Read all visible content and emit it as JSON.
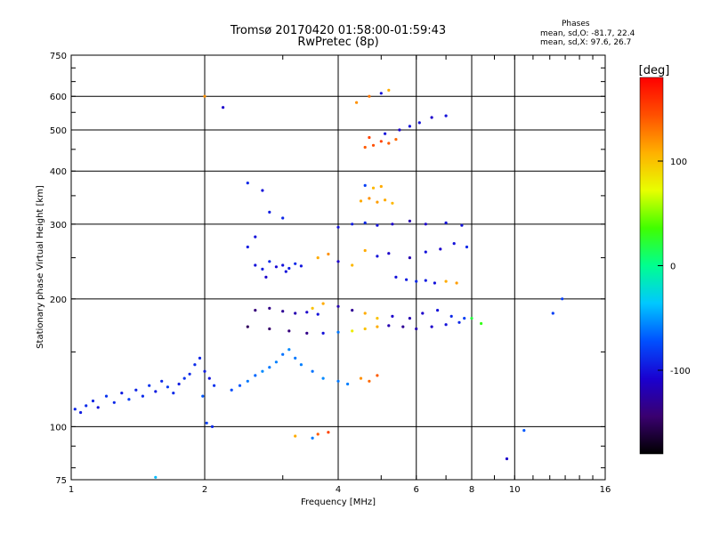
{
  "header": {
    "title_line1": "Tromsø 20170420 01:58:00-01:59:43",
    "title_line2": "RwPretec (8p)",
    "phases_heading": "Phases",
    "phases_o": "mean, sd,O: -81.7, 22.4",
    "phases_x": "mean, sd,X:  97.6, 26.7"
  },
  "colorbar": {
    "unit_label": "[deg]",
    "ticks": [
      {
        "value": 100,
        "label": "100"
      },
      {
        "value": 0,
        "label": "0"
      },
      {
        "value": -100,
        "label": "-100"
      }
    ],
    "range": [
      -180,
      180
    ],
    "stops": [
      "#000000",
      "#3a0070",
      "#1a00d0",
      "#0050ff",
      "#00c8ff",
      "#00ff90",
      "#40ff00",
      "#e8ff00",
      "#ffb000",
      "#ff5000",
      "#ff0000"
    ]
  },
  "chart_data": {
    "type": "scatter",
    "xlabel": "Frequency [MHz]",
    "ylabel": "Stationary phase Virtual Height [km]",
    "x_scale": "log",
    "y_scale": "log",
    "xlim": [
      1,
      16
    ],
    "ylim": [
      75,
      750
    ],
    "x_ticks": [
      1,
      2,
      4,
      6,
      8,
      10,
      16
    ],
    "y_ticks": [
      75,
      100,
      200,
      300,
      400,
      500,
      600,
      750
    ],
    "grid": true,
    "series": [
      {
        "label": "",
        "points": [
          [
            1.02,
            110,
            -90
          ],
          [
            1.05,
            108,
            -95
          ],
          [
            1.08,
            112,
            -88
          ],
          [
            1.12,
            115,
            -92
          ],
          [
            1.15,
            111,
            -100
          ],
          [
            1.2,
            118,
            -85
          ],
          [
            1.25,
            114,
            -90
          ],
          [
            1.3,
            120,
            -95
          ],
          [
            1.35,
            116,
            -80
          ],
          [
            1.4,
            122,
            -92
          ],
          [
            1.45,
            118,
            -88
          ],
          [
            1.5,
            125,
            -85
          ],
          [
            1.55,
            121,
            -95
          ],
          [
            1.6,
            128,
            -90
          ],
          [
            1.65,
            124,
            -82
          ],
          [
            1.7,
            120,
            -88
          ],
          [
            1.75,
            126,
            -95
          ],
          [
            1.8,
            130,
            -85
          ],
          [
            1.85,
            133,
            -90
          ],
          [
            1.9,
            140,
            -88
          ],
          [
            1.95,
            145,
            -92
          ],
          [
            2.0,
            135,
            -95
          ],
          [
            2.05,
            130,
            -100
          ],
          [
            2.1,
            125,
            -85
          ],
          [
            1.98,
            118,
            -70
          ],
          [
            2.02,
            102,
            -80
          ],
          [
            2.08,
            100,
            -90
          ],
          [
            2.3,
            122,
            -75
          ],
          [
            2.4,
            125,
            -70
          ],
          [
            2.5,
            128,
            -60
          ],
          [
            2.6,
            132,
            -65
          ],
          [
            2.7,
            135,
            -55
          ],
          [
            2.8,
            138,
            -60
          ],
          [
            2.9,
            142,
            -58
          ],
          [
            3.0,
            148,
            -62
          ],
          [
            3.1,
            152,
            -55
          ],
          [
            3.2,
            145,
            -60
          ],
          [
            3.3,
            140,
            -58
          ],
          [
            3.5,
            135,
            -62
          ],
          [
            3.7,
            130,
            -55
          ],
          [
            4.0,
            128,
            -60
          ],
          [
            4.2,
            126,
            -58
          ],
          [
            4.5,
            130,
            120
          ],
          [
            4.7,
            128,
            135
          ],
          [
            4.9,
            132,
            140
          ],
          [
            2.6,
            240,
            -100
          ],
          [
            2.7,
            235,
            -95
          ],
          [
            2.8,
            245,
            -90
          ],
          [
            2.9,
            238,
            -105
          ],
          [
            3.0,
            240,
            -100
          ],
          [
            3.1,
            236,
            -95
          ],
          [
            3.2,
            242,
            -90
          ],
          [
            3.3,
            239,
            -98
          ],
          [
            2.75,
            225,
            -110
          ],
          [
            3.05,
            232,
            -100
          ],
          [
            2.6,
            188,
            -140
          ],
          [
            2.8,
            190,
            -135
          ],
          [
            3.0,
            187,
            -130
          ],
          [
            3.2,
            185,
            -120
          ],
          [
            3.4,
            186,
            -110
          ],
          [
            3.6,
            184,
            -100
          ],
          [
            2.5,
            172,
            -150
          ],
          [
            2.8,
            170,
            -145
          ],
          [
            3.1,
            168,
            -140
          ],
          [
            3.4,
            166,
            -135
          ],
          [
            3.7,
            166,
            -100
          ],
          [
            4.0,
            167,
            -60
          ],
          [
            4.3,
            168,
            80
          ],
          [
            4.6,
            170,
            100
          ],
          [
            4.9,
            172,
            110
          ],
          [
            5.2,
            173,
            -120
          ],
          [
            5.6,
            172,
            -130
          ],
          [
            6.0,
            170,
            -120
          ],
          [
            6.5,
            172,
            -110
          ],
          [
            7.0,
            174,
            -100
          ],
          [
            7.5,
            176,
            -90
          ],
          [
            3.5,
            190,
            100
          ],
          [
            3.7,
            195,
            110
          ],
          [
            4.0,
            192,
            -120
          ],
          [
            4.3,
            188,
            -130
          ],
          [
            4.6,
            185,
            110
          ],
          [
            4.9,
            180,
            100
          ],
          [
            5.3,
            182,
            -110
          ],
          [
            5.8,
            180,
            -120
          ],
          [
            6.2,
            185,
            -110
          ],
          [
            6.7,
            188,
            -100
          ],
          [
            7.2,
            182,
            -90
          ],
          [
            7.7,
            180,
            -80
          ],
          [
            8.0,
            180,
            20
          ],
          [
            8.4,
            175,
            30
          ],
          [
            3.6,
            250,
            110
          ],
          [
            3.8,
            255,
            120
          ],
          [
            4.0,
            245,
            -110
          ],
          [
            4.3,
            240,
            105
          ],
          [
            4.6,
            260,
            110
          ],
          [
            4.9,
            252,
            -100
          ],
          [
            5.2,
            256,
            -110
          ],
          [
            5.8,
            250,
            -120
          ],
          [
            6.3,
            258,
            -100
          ],
          [
            6.8,
            262,
            -110
          ],
          [
            7.3,
            270,
            -100
          ],
          [
            7.8,
            265,
            -90
          ],
          [
            5.4,
            225,
            -100
          ],
          [
            5.7,
            222,
            -95
          ],
          [
            6.0,
            220,
            -90
          ],
          [
            6.3,
            221,
            -95
          ],
          [
            6.6,
            218,
            -100
          ],
          [
            7.0,
            220,
            110
          ],
          [
            7.4,
            218,
            115
          ],
          [
            4.0,
            295,
            -100
          ],
          [
            4.3,
            300,
            -95
          ],
          [
            4.6,
            302,
            -90
          ],
          [
            4.9,
            298,
            -100
          ],
          [
            5.3,
            300,
            -110
          ],
          [
            5.8,
            305,
            -120
          ],
          [
            6.3,
            300,
            -110
          ],
          [
            7.0,
            302,
            -100
          ],
          [
            7.6,
            298,
            -100
          ],
          [
            4.5,
            340,
            110
          ],
          [
            4.7,
            345,
            120
          ],
          [
            4.9,
            338,
            115
          ],
          [
            5.1,
            342,
            110
          ],
          [
            5.3,
            336,
            105
          ],
          [
            4.6,
            370,
            -80
          ],
          [
            4.8,
            365,
            105
          ],
          [
            5.0,
            368,
            110
          ],
          [
            4.6,
            455,
            140
          ],
          [
            4.8,
            460,
            145
          ],
          [
            5.0,
            470,
            150
          ],
          [
            5.2,
            465,
            140
          ],
          [
            5.4,
            475,
            135
          ],
          [
            4.7,
            480,
            150
          ],
          [
            5.1,
            490,
            -100
          ],
          [
            5.5,
            500,
            -110
          ],
          [
            5.8,
            510,
            -100
          ],
          [
            6.1,
            520,
            -100
          ],
          [
            6.5,
            535,
            -110
          ],
          [
            7.0,
            540,
            -100
          ],
          [
            4.4,
            580,
            120
          ],
          [
            4.7,
            600,
            130
          ],
          [
            5.0,
            610,
            -100
          ],
          [
            5.2,
            620,
            110
          ],
          [
            2.5,
            375,
            -90
          ],
          [
            2.7,
            360,
            -100
          ],
          [
            2.8,
            320,
            -95
          ],
          [
            3.0,
            310,
            -90
          ],
          [
            2.6,
            280,
            -100
          ],
          [
            2.5,
            265,
            -95
          ],
          [
            3.2,
            95,
            110
          ],
          [
            3.6,
            96,
            140
          ],
          [
            3.8,
            97,
            150
          ],
          [
            3.5,
            94,
            -60
          ],
          [
            2.2,
            565,
            -110
          ],
          [
            2.0,
            600,
            120
          ],
          [
            10.5,
            98,
            -70
          ],
          [
            9.6,
            84,
            -110
          ],
          [
            12.8,
            200,
            -80
          ],
          [
            12.2,
            185,
            -80
          ],
          [
            1.55,
            76,
            -40
          ]
        ]
      }
    ]
  }
}
